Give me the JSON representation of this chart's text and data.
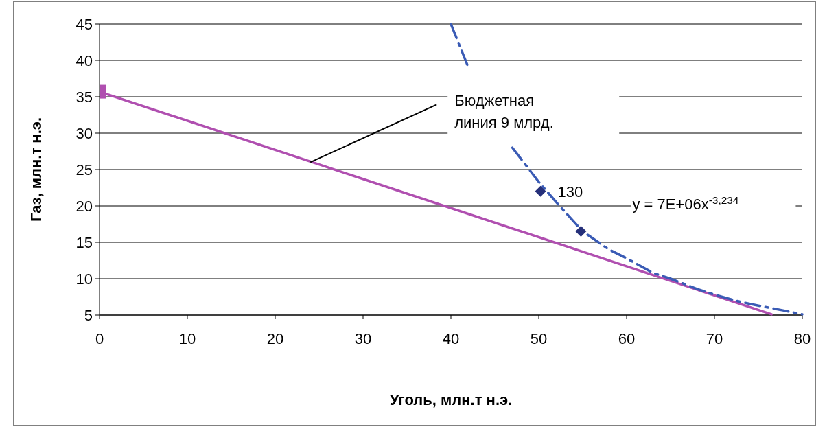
{
  "chart_data": {
    "type": "line",
    "xlabel": "Уголь, млн.т н.э.",
    "ylabel": "Газ, млн.т н.э.",
    "xlim": [
      0,
      80
    ],
    "ylim": [
      5,
      45
    ],
    "xticks": [
      0,
      10,
      20,
      30,
      40,
      50,
      60,
      70,
      80
    ],
    "yticks": [
      5,
      10,
      15,
      20,
      25,
      30,
      35,
      40,
      45
    ],
    "grid": "y",
    "series": [
      {
        "color": "#b04fb0",
        "marker": "none",
        "line_style": "solid",
        "x": [
          0,
          76.5
        ],
        "values": [
          35.7,
          5.1
        ]
      },
      {
        "type": "scatter",
        "color": "#b04fb0",
        "marker": "square",
        "x": [
          0
        ],
        "values": [
          35.7
        ]
      },
      {
        "color": "#3a5bb5",
        "marker": "none",
        "line_style": "dashed",
        "x": [
          40,
          42,
          44,
          47,
          50,
          52,
          55,
          58,
          60,
          63,
          65,
          68,
          70,
          73,
          75,
          78,
          80
        ],
        "values": [
          45,
          39,
          null,
          28,
          23.3,
          20.5,
          16.5,
          14,
          12.8,
          10.8,
          10,
          8.6,
          7.8,
          6.8,
          6.3,
          5.6,
          5.1
        ]
      },
      {
        "type": "scatter",
        "color": "#26307a",
        "marker": "diamond",
        "x": [
          50.2,
          54.8
        ],
        "values": [
          22,
          16.5
        ]
      }
    ],
    "annotations": [
      {
        "text": "Бюджетная линия 9 млрд.",
        "x": 24,
        "y": 26
      },
      {
        "text": "130",
        "x": 50.2,
        "y": 22
      },
      "y = 7E+06x$^{-3,234}$"
    ]
  }
}
